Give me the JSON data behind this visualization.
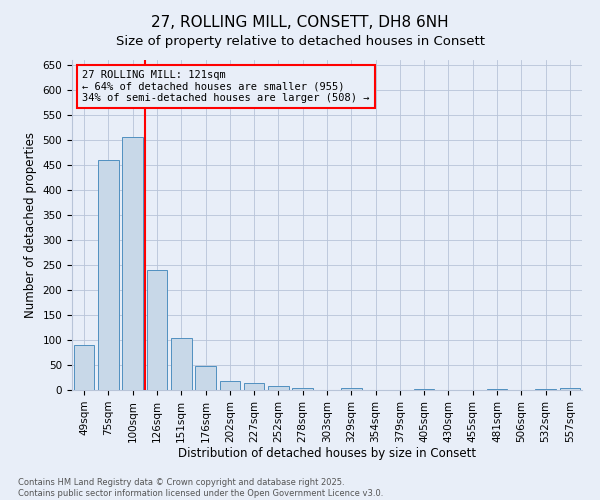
{
  "title": "27, ROLLING MILL, CONSETT, DH8 6NH",
  "subtitle": "Size of property relative to detached houses in Consett",
  "xlabel": "Distribution of detached houses by size in Consett",
  "ylabel": "Number of detached properties",
  "categories": [
    "49sqm",
    "75sqm",
    "100sqm",
    "126sqm",
    "151sqm",
    "176sqm",
    "202sqm",
    "227sqm",
    "252sqm",
    "278sqm",
    "303sqm",
    "329sqm",
    "354sqm",
    "379sqm",
    "405sqm",
    "430sqm",
    "455sqm",
    "481sqm",
    "506sqm",
    "532sqm",
    "557sqm"
  ],
  "values": [
    90,
    460,
    507,
    240,
    104,
    48,
    18,
    14,
    9,
    4,
    0,
    4,
    0,
    0,
    3,
    0,
    0,
    2,
    0,
    2,
    4
  ],
  "bar_color": "#c8d8e8",
  "bar_edge_color": "#5090c0",
  "vline_x": 2.5,
  "vline_color": "red",
  "annotation_text": "27 ROLLING MILL: 121sqm\n← 64% of detached houses are smaller (955)\n34% of semi-detached houses are larger (508) →",
  "ylim": [
    0,
    660
  ],
  "yticks": [
    0,
    50,
    100,
    150,
    200,
    250,
    300,
    350,
    400,
    450,
    500,
    550,
    600,
    650
  ],
  "footer1": "Contains HM Land Registry data © Crown copyright and database right 2025.",
  "footer2": "Contains public sector information licensed under the Open Government Licence v3.0.",
  "bg_color": "#e8eef8",
  "grid_color": "#b8c4d8",
  "title_fontsize": 11,
  "axis_label_fontsize": 8.5,
  "tick_fontsize": 7.5,
  "annotation_fontsize": 7.5
}
